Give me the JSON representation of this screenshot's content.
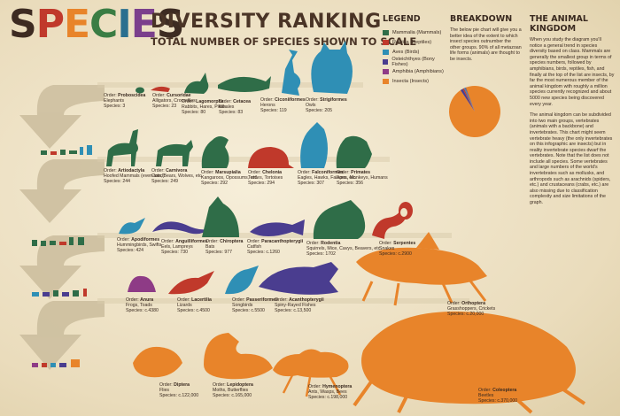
{
  "header": {
    "title_letters": [
      "S",
      "P",
      "E",
      "C",
      "I",
      "E",
      "S"
    ],
    "title_letter_colors": [
      "#3d2b22",
      "#c0392b",
      "#e8842a",
      "#3a7d44",
      "#2a6f8f",
      "#7b3f8c",
      "#3d2b22"
    ],
    "title": "DIVERSITY RANKING",
    "subtitle": "TOTAL NUMBER OF SPECIES SHOWN TO SCALE"
  },
  "legend": {
    "heading": "LEGEND",
    "items": [
      {
        "label": "Mammalia (Mammals)",
        "color": "#2f6d48"
      },
      {
        "label": "Reptilia (Reptiles)",
        "color": "#c0392b"
      },
      {
        "label": "Aves (Birds)",
        "color": "#2f8fb5"
      },
      {
        "label": "Osteichthyes (Bony Fishes)",
        "color": "#4a3d8f"
      },
      {
        "label": "Amphibia (Amphibians)",
        "color": "#8e3b86"
      },
      {
        "label": "Insecta (Insects)",
        "color": "#e8842a"
      }
    ]
  },
  "breakdown": {
    "heading": "BREAKDOWN",
    "text": "The below pie chart will give you a better idea of the extent to which insect species outnumber the other groups. 90% of all metazoan life forms (animals) are thought to be insects."
  },
  "kingdom": {
    "heading": "THE ANIMAL KINGDOM",
    "text1": "When you study the diagram you'll notice a general trend in species diversity based on class. Mammals are generally the smallest group in terms of species numbers, followed by amphibians, birds, reptiles, fish, and finally at the top of the list are insects, by far the most numerous member of the animal kingdom with roughly a million species currently recognized and about 5000 new species being discovered every year.",
    "text2": "The animal kingdom can be subdivided into two main groups, vertebrates (animals with a backbone) and invertebrates. This chart might seem vertebrate heavy (the only invertebrates on this infographic are insects) but in reality invertebrate species dwarf the vertebrates. Note that the list does not include all species. Some vertebrates and large numbers of the world's invertebrates such as mollusks, and arthropods such as arachnids (spiders, etc.) and crustaceans (crabs, etc.) are also missing due to classification complexity and size limitations of the graph."
  },
  "species": [
    {
      "order": "Proboscidea",
      "desc": "Elephants",
      "count": "Species: 3"
    },
    {
      "order": "Cursoridae",
      "desc": "Alligators, Crocodiles",
      "count": "Species: 23"
    },
    {
      "order": "Lagomorpha",
      "desc": "Rabbits, Hares, Pikas",
      "count": "Species: 80"
    },
    {
      "order": "Cetacea",
      "desc": "Whales",
      "count": "Species: 83"
    },
    {
      "order": "Ciconiiformes",
      "desc": "Herons",
      "count": "Species: 119"
    },
    {
      "order": "Strigiformes",
      "desc": "Owls",
      "count": "Species: 205"
    },
    {
      "order": "Artiodactyla",
      "desc": "Hoofed Mammals (even-toed)",
      "count": "Species: 244"
    },
    {
      "order": "Carnivora",
      "desc": "Cats, Bears, Wolves, etc.",
      "count": "Species: 249"
    },
    {
      "order": "Marsupialia",
      "desc": "Kangaroos, Opossums, etc.",
      "count": "Species: 292"
    },
    {
      "order": "Chelonia",
      "desc": "Turtles, Tortoises",
      "count": "Species: 294"
    },
    {
      "order": "Falconiformes",
      "desc": "Eagles, Hawks, Falcons, etc.",
      "count": "Species: 307"
    },
    {
      "order": "Primates",
      "desc": "Apes, Monkeys, Humans",
      "count": "Species: 356"
    },
    {
      "order": "Apodiformes",
      "desc": "Hummingbirds, Swifts",
      "count": "Species: 424"
    },
    {
      "order": "Anguilliformes",
      "desc": "Eels, Lampreys",
      "count": "Species: 730"
    },
    {
      "order": "Chiroptera",
      "desc": "Bats",
      "count": "Species: 977"
    },
    {
      "order": "Paracanthopterygii",
      "desc": "Catfish",
      "count": "Species: c.1260"
    },
    {
      "order": "Rodentia",
      "desc": "Squirrels, Mice, Cavys, Beavers, etc.",
      "count": "Species: 1702"
    },
    {
      "order": "Serpentes",
      "desc": "Snakes",
      "count": "Species: c.2900"
    },
    {
      "order": "Anura",
      "desc": "Frogs, Toads",
      "count": "Species: c.4380"
    },
    {
      "order": "Lacertilia",
      "desc": "Lizards",
      "count": "Species: c.4500"
    },
    {
      "order": "Passeriformes",
      "desc": "Songbirds",
      "count": "Species: c.5500"
    },
    {
      "order": "Acanthopterygii",
      "desc": "Spiny-Rayed Fishes",
      "count": "Species: c.13,500"
    },
    {
      "order": "Orthoptera",
      "desc": "Grasshoppers, Crickets",
      "count": "Species: c.20,000"
    },
    {
      "order": "Diptera",
      "desc": "Flies",
      "count": "Species: c.122,000"
    },
    {
      "order": "Lepidoptera",
      "desc": "Moths, Butterflies",
      "count": "Species: c.165,000"
    },
    {
      "order": "Hymenoptera",
      "desc": "Ants, Wasps, Bees",
      "count": "Species: c.198,000"
    },
    {
      "order": "Coleoptera",
      "desc": "Beetles",
      "count": "Species: c.370,000"
    }
  ],
  "order_prefix": "Order:",
  "chart_data": {
    "type": "pie",
    "categories": [
      "Insecta",
      "Osteichthyes",
      "Reptilia",
      "Aves",
      "Amphibia",
      "Mammalia"
    ],
    "values": [
      875000,
      14760,
      7717,
      6156,
      4380,
      1507
    ],
    "colors": [
      "#e8842a",
      "#4a3d8f",
      "#c0392b",
      "#2f8fb5",
      "#8e3b86",
      "#2f6d48"
    ]
  }
}
